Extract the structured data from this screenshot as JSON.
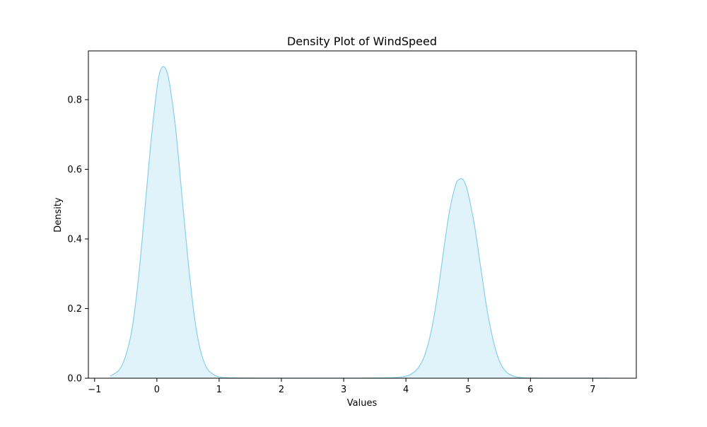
{
  "chart_data": {
    "type": "area",
    "title": "Density Plot of WindSpeed",
    "xlabel": "Values",
    "ylabel": "Density",
    "xlim": [
      -1.1,
      7.7
    ],
    "ylim": [
      0.0,
      0.94
    ],
    "xticks": [
      -1,
      0,
      1,
      2,
      3,
      4,
      5,
      6,
      7
    ],
    "yticks": [
      0.0,
      0.2,
      0.4,
      0.6,
      0.8
    ],
    "grid": false,
    "legend": "none",
    "colors": {
      "line": "#87ceeb",
      "fill": "#87ceeb",
      "fill_opacity": 0.25
    },
    "series": [
      {
        "x": [
          -0.75,
          -0.6,
          -0.5,
          -0.4,
          -0.3,
          -0.2,
          -0.1,
          0.0,
          0.05,
          0.1,
          0.15,
          0.2,
          0.3,
          0.4,
          0.5,
          0.6,
          0.7,
          0.8,
          0.9,
          1.0,
          1.1,
          1.3,
          1.6,
          2.0,
          2.5,
          3.0,
          3.5,
          3.8,
          4.0,
          4.1,
          4.2,
          4.3,
          4.4,
          4.5,
          4.6,
          4.7,
          4.8,
          4.85,
          4.9,
          4.95,
          5.0,
          5.1,
          5.2,
          5.3,
          5.4,
          5.5,
          5.6,
          5.7,
          5.8,
          5.9,
          6.0,
          6.3,
          6.7,
          7.0,
          7.25
        ],
        "y": [
          0.006,
          0.025,
          0.065,
          0.14,
          0.28,
          0.47,
          0.67,
          0.83,
          0.88,
          0.895,
          0.885,
          0.85,
          0.72,
          0.53,
          0.34,
          0.18,
          0.08,
          0.03,
          0.012,
          0.004,
          0.0015,
          0.0005,
          0.0003,
          0.0003,
          0.0003,
          0.0003,
          0.0006,
          0.0015,
          0.006,
          0.014,
          0.03,
          0.065,
          0.13,
          0.23,
          0.36,
          0.48,
          0.556,
          0.57,
          0.573,
          0.56,
          0.53,
          0.44,
          0.32,
          0.2,
          0.11,
          0.05,
          0.02,
          0.008,
          0.003,
          0.0012,
          0.0005,
          0.0003,
          0.0002,
          0.0002,
          0.0002
        ]
      }
    ]
  }
}
